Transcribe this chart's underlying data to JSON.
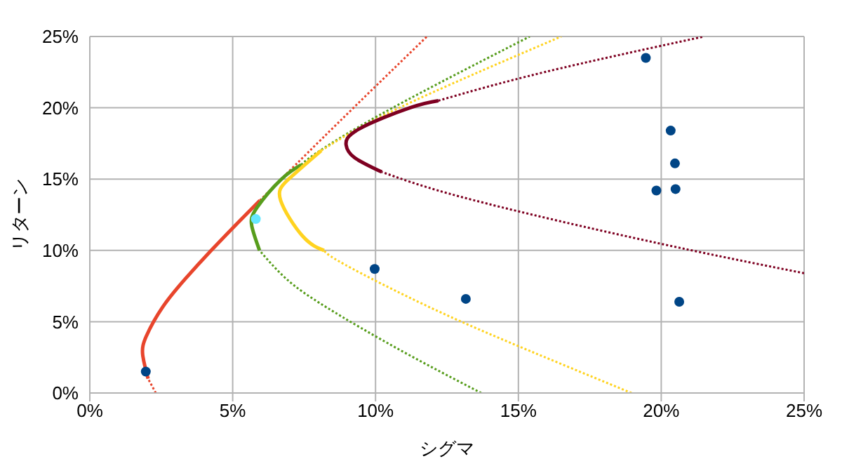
{
  "chart_data": {
    "type": "line",
    "xlabel": "シグマ",
    "ylabel": "リターン",
    "xlim": [
      0,
      25
    ],
    "ylim": [
      0,
      25
    ],
    "xticks": [
      {
        "value": 0,
        "label": "0%"
      },
      {
        "value": 5,
        "label": "5%"
      },
      {
        "value": 10,
        "label": "10%"
      },
      {
        "value": 15,
        "label": "15%"
      },
      {
        "value": 20,
        "label": "20%"
      },
      {
        "value": 25,
        "label": "25%"
      }
    ],
    "yticks": [
      {
        "value": 0,
        "label": "0%"
      },
      {
        "value": 5,
        "label": "5%"
      },
      {
        "value": 10,
        "label": "10%"
      },
      {
        "value": 15,
        "label": "15%"
      },
      {
        "value": 20,
        "label": "20%"
      },
      {
        "value": 25,
        "label": "25%"
      }
    ],
    "grid": true,
    "series": [
      {
        "type": "line",
        "color": "#e8452c",
        "line_style": "dotted",
        "x": [
          2.31,
          2.04
        ],
        "values": [
          0,
          1
        ]
      },
      {
        "type": "line",
        "color": "#e8452c",
        "line_style": "solid",
        "x": [
          2.04,
          1.85,
          1.98,
          2.54,
          3.34,
          4.25,
          5.21,
          5.95
        ],
        "values": [
          1,
          2.7,
          4,
          6,
          8,
          10,
          12,
          13.5
        ]
      },
      {
        "type": "line",
        "color": "#e8452c",
        "line_style": "dotted",
        "x": [
          5.95,
          7.2,
          9.23,
          11.8
        ],
        "values": [
          13.5,
          16,
          20,
          25
        ]
      },
      {
        "type": "line",
        "color": "#579d1c",
        "line_style": "dotted",
        "x": [
          13.7,
          10.87,
          8.29,
          6.88,
          5.94
        ],
        "values": [
          0,
          3,
          6,
          8,
          10
        ]
      },
      {
        "type": "line",
        "color": "#579d1c",
        "line_style": "solid",
        "x": [
          5.94,
          5.67,
          5.85,
          6.71,
          7.4
        ],
        "values": [
          10,
          11.7,
          13,
          15,
          16
        ]
      },
      {
        "type": "line",
        "color": "#579d1c",
        "line_style": "dotted",
        "x": [
          7.4,
          8.06,
          10.6,
          15.4
        ],
        "values": [
          16,
          17,
          20,
          25
        ]
      },
      {
        "type": "line",
        "color": "#ffd320",
        "line_style": "dotted",
        "x": [
          18.96,
          15.34,
          11.91,
          8.93,
          8.2
        ],
        "values": [
          0,
          3,
          6,
          9,
          10
        ]
      },
      {
        "type": "line",
        "color": "#ffd320",
        "line_style": "solid",
        "x": [
          8.2,
          7.45,
          6.68,
          6.96,
          8.1
        ],
        "values": [
          10,
          11,
          13.5,
          15,
          17
        ]
      },
      {
        "type": "line",
        "color": "#ffd320",
        "line_style": "dotted",
        "x": [
          8.1,
          10.83,
          16.5
        ],
        "values": [
          17,
          20,
          25
        ]
      },
      {
        "type": "line",
        "color": "#7e0021",
        "line_style": "dotted",
        "x": [
          25,
          21.07,
          16.56,
          12.54,
          10.22
        ],
        "values": [
          8.4,
          10,
          12,
          14,
          15.5
        ]
      },
      {
        "type": "line",
        "color": "#7e0021",
        "line_style": "solid",
        "x": [
          10.22,
          9.27,
          8.97,
          9.41,
          11.2,
          12.2
        ],
        "values": [
          15.5,
          16.5,
          17.4,
          18.5,
          20,
          20.5
        ]
      },
      {
        "type": "line",
        "color": "#7e0021",
        "line_style": "dotted",
        "x": [
          12.2,
          15.91,
          21.5
        ],
        "values": [
          20.5,
          22.5,
          25
        ]
      },
      {
        "type": "scatter",
        "color": "#004586",
        "marker": "circle",
        "x": [
          1.96,
          9.97,
          13.16,
          19.46,
          20.33,
          20.48,
          19.83,
          20.5,
          20.63
        ],
        "values": [
          1.5,
          8.7,
          6.6,
          23.5,
          18.4,
          16.1,
          14.2,
          14.3,
          6.4
        ]
      },
      {
        "type": "scatter",
        "color": "#66e8ff",
        "marker": "circle",
        "x": [
          5.81
        ],
        "values": [
          12.2
        ]
      }
    ]
  }
}
